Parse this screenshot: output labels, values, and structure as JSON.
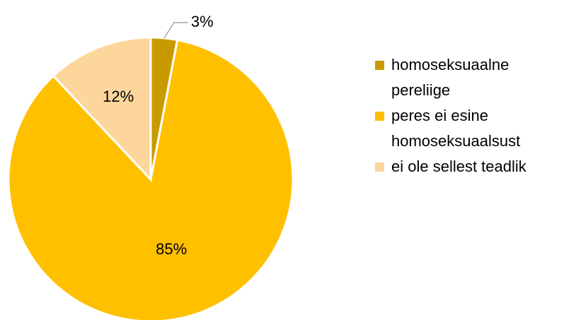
{
  "chart_data": {
    "type": "pie",
    "categories": [
      "homoseksuaalne pereliige",
      "peres ei esine homoseksuaalsust",
      "ei ole sellest teadlik"
    ],
    "values": [
      3,
      85,
      12
    ],
    "value_labels": [
      "3%",
      "85%",
      "12%"
    ],
    "colors": [
      "#c99a00",
      "#ffc000",
      "#fcd69b"
    ],
    "legend": "right"
  }
}
